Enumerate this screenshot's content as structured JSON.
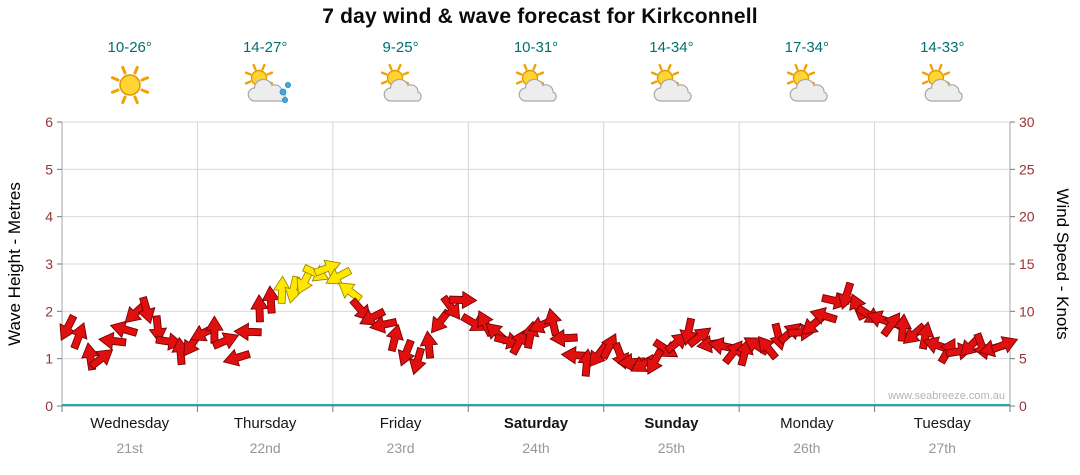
{
  "title": "7 day wind & wave forecast for Kirkconnell",
  "watermark": "www.seabreeze.com.au",
  "axes": {
    "left_label": "Wave Height - Metres",
    "right_label": "Wind Speed - Knots",
    "left_ticks": [
      0,
      1,
      2,
      3,
      4,
      5,
      6
    ],
    "right_ticks": [
      0,
      5,
      10,
      15,
      20,
      25,
      30
    ]
  },
  "days": [
    {
      "name": "Wednesday",
      "date": "21st",
      "temp": "10-26°",
      "icon": "sun",
      "weekend": false
    },
    {
      "name": "Thursday",
      "date": "22nd",
      "temp": "14-27°",
      "icon": "sun-cloud-rain",
      "weekend": false
    },
    {
      "name": "Friday",
      "date": "23rd",
      "temp": "9-25°",
      "icon": "sun-cloud",
      "weekend": false
    },
    {
      "name": "Saturday",
      "date": "24th",
      "temp": "10-31°",
      "icon": "sun-cloud",
      "weekend": true
    },
    {
      "name": "Sunday",
      "date": "25th",
      "temp": "14-34°",
      "icon": "sun-cloud",
      "weekend": true
    },
    {
      "name": "Monday",
      "date": "26th",
      "temp": "17-34°",
      "icon": "sun-cloud",
      "weekend": false
    },
    {
      "name": "Tuesday",
      "date": "27th",
      "temp": "14-33°",
      "icon": "sun-cloud",
      "weekend": false
    }
  ],
  "chart_data": {
    "type": "scatter",
    "title": "7 day wind & wave forecast for Kirkconnell",
    "categories": [
      "Wednesday 21st",
      "Thursday 22nd",
      "Friday 23rd",
      "Saturday 24th",
      "Sunday 25th",
      "Monday 26th",
      "Tuesday 27th"
    ],
    "points_per_day": 12,
    "x_step_hours": 2,
    "ylabel_left": "Wave Height - Metres",
    "ylabel_right": "Wind Speed - Knots",
    "ylim_left": [
      0,
      6
    ],
    "ylim_right": [
      0,
      30
    ],
    "grid": true,
    "wind_speed_knots": [
      8,
      7,
      5,
      4.8,
      6.5,
      8.5,
      9.5,
      10,
      8.5,
      7,
      6,
      6.5,
      7.5,
      8,
      7,
      5.5,
      8,
      10.5,
      11.5,
      12,
      12.5,
      13,
      14,
      14.5,
      13.5,
      12,
      10.5,
      9.5,
      9,
      7,
      5.5,
      5,
      6.5,
      9,
      10.5,
      11,
      9,
      8.5,
      8,
      7,
      6.5,
      7.5,
      8.5,
      9,
      7,
      5.5,
      4.5,
      5.5,
      6,
      5.5,
      4.5,
      4,
      5,
      6,
      7,
      8,
      7.5,
      6.5,
      6,
      5.5,
      5.5,
      6,
      6.5,
      7,
      7.5,
      8,
      8.5,
      9.5,
      11,
      11.5,
      10.5,
      9.5,
      9,
      8.5,
      8,
      7.5,
      7,
      6.5,
      6,
      5.5,
      6,
      6.5,
      6,
      6.5
    ],
    "wave_height_metres_constant": 0,
    "colors": {
      "arrow_normal": "#e01010",
      "arrow_strong": "#ffe800",
      "strong_threshold_knots": 12,
      "wave_line": "#00a0a0",
      "tick_label": "#993333",
      "temp_label": "#007070"
    }
  }
}
